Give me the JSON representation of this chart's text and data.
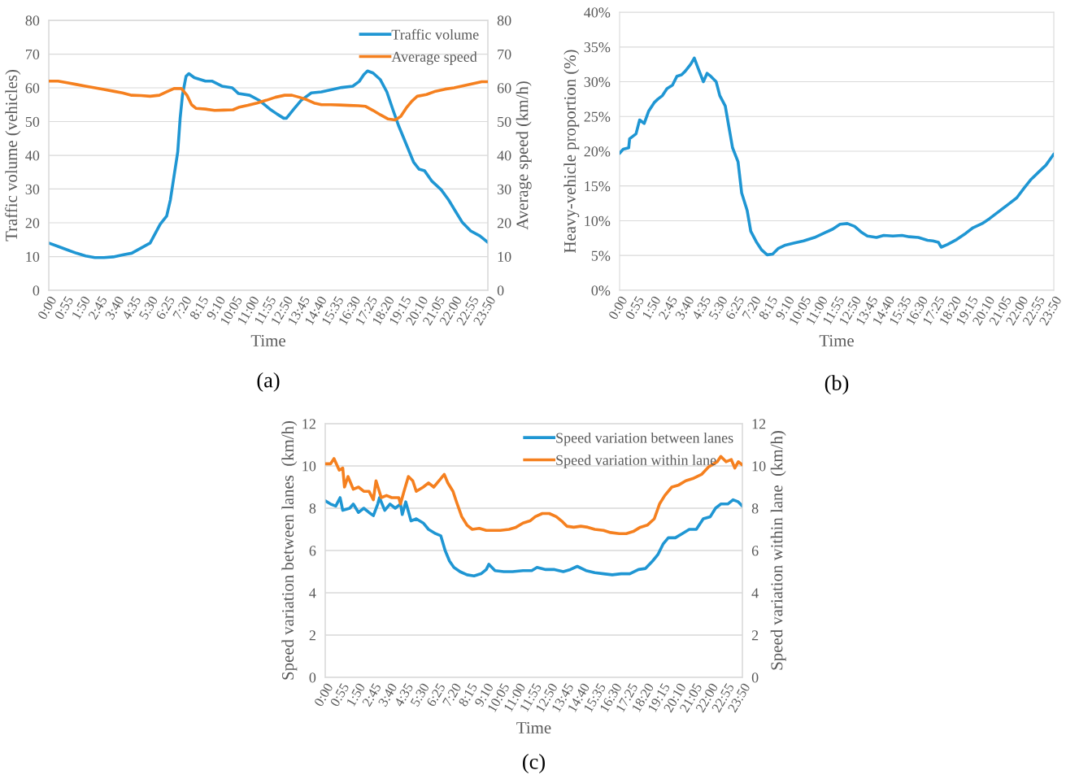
{
  "chart_data": [
    {
      "type": "line",
      "title": "(a)",
      "xlabel": "Time",
      "ylabel": "Traffic volume (vehicles)",
      "y2label": "Average speed (km/h)",
      "legend": "top right",
      "grid": "y",
      "xlim": [
        0,
        23.8333
      ],
      "xticks": [
        {
          "value": 0,
          "label": "0:00"
        },
        {
          "value": 0.9167,
          "label": "0:55"
        },
        {
          "value": 1.8333,
          "label": "1:50"
        },
        {
          "value": 2.75,
          "label": "2:45"
        },
        {
          "value": 3.6667,
          "label": "3:40"
        },
        {
          "value": 4.5833,
          "label": "4:35"
        },
        {
          "value": 5.5,
          "label": "5:30"
        },
        {
          "value": 6.4167,
          "label": "6:25"
        },
        {
          "value": 7.3333,
          "label": "7:20"
        },
        {
          "value": 8.25,
          "label": "8:15"
        },
        {
          "value": 9.1667,
          "label": "9:10"
        },
        {
          "value": 10.0833,
          "label": "10:05"
        },
        {
          "value": 11,
          "label": "11:00"
        },
        {
          "value": 11.9167,
          "label": "11:55"
        },
        {
          "value": 12.8333,
          "label": "12:50"
        },
        {
          "value": 13.75,
          "label": "13:45"
        },
        {
          "value": 14.6667,
          "label": "14:40"
        },
        {
          "value": 15.5833,
          "label": "15:35"
        },
        {
          "value": 16.5,
          "label": "16:30"
        },
        {
          "value": 17.4167,
          "label": "17:25"
        },
        {
          "value": 18.3333,
          "label": "18:20"
        },
        {
          "value": 19.25,
          "label": "19:15"
        },
        {
          "value": 20.1667,
          "label": "20:10"
        },
        {
          "value": 21.0833,
          "label": "21:05"
        },
        {
          "value": 22,
          "label": "22:00"
        },
        {
          "value": 22.9167,
          "label": "22:55"
        },
        {
          "value": 23.8333,
          "label": "23:50"
        }
      ],
      "ylim": [
        0,
        80
      ],
      "yticks": [
        0,
        10,
        20,
        30,
        40,
        50,
        60,
        70,
        80
      ],
      "y2lim": [
        0,
        80
      ],
      "y2ticks": [
        0,
        10,
        20,
        30,
        40,
        50,
        60,
        70,
        80
      ],
      "series": [
        {
          "name": "Traffic volume",
          "color": "#1f96d3",
          "x": [
            0,
            0.5,
            1.0,
            1.5,
            2.0,
            2.5,
            3.0,
            3.5,
            4.0,
            4.5,
            5.0,
            5.5,
            6.05,
            6.4,
            6.6,
            6.8,
            7.0,
            7.13,
            7.26,
            7.45,
            7.6,
            7.9,
            8.5,
            8.85,
            9.4,
            9.96,
            10.3,
            10.9,
            11.45,
            12.0,
            12.4,
            12.75,
            12.9,
            13.3,
            13.7,
            14.25,
            14.8,
            15.4,
            15.9,
            16.5,
            16.85,
            17.1,
            17.3,
            17.6,
            18.0,
            18.35,
            18.7,
            19.0,
            19.5,
            19.8,
            20.1,
            20.4,
            20.8,
            21.3,
            21.7,
            22.1,
            22.45,
            22.9,
            23.4,
            23.8333
          ],
          "values": [
            14.0,
            13,
            12,
            11,
            10.2,
            9.7,
            9.7,
            9.9,
            10.5,
            11,
            12.5,
            14,
            19.6,
            22,
            26.8,
            33.9,
            41,
            51,
            58,
            63.4,
            64.2,
            63,
            62,
            62,
            60.5,
            60,
            58.3,
            57.8,
            56.2,
            53.7,
            52.2,
            51,
            51,
            53.7,
            56.3,
            58.5,
            58.8,
            59.5,
            60.1,
            60.5,
            61.9,
            63.9,
            65,
            64.4,
            62.4,
            58.8,
            53.2,
            48.6,
            42,
            38,
            35.9,
            35.4,
            32.3,
            29.8,
            26.8,
            23.2,
            20.1,
            17.6,
            16.1,
            14.2
          ]
        },
        {
          "name": "Average speed",
          "color": "#f5801f",
          "axis": "y2",
          "x": [
            0,
            0.5,
            1.0,
            1.5,
            2.0,
            2.5,
            3.0,
            3.5,
            4.0,
            4.5,
            5.0,
            5.5,
            6.0,
            6.4,
            6.8,
            7.2,
            7.5,
            7.75,
            8.0,
            8.5,
            9.0,
            9.5,
            10.0,
            10.3,
            10.8,
            11.3,
            11.8,
            12.3,
            12.8,
            13.2,
            13.6,
            14.0,
            14.4,
            14.8,
            15.3,
            15.8,
            16.3,
            16.8,
            17.2,
            17.6,
            18.0,
            18.4,
            18.8,
            19.1,
            19.4,
            19.7,
            20.0,
            20.5,
            21.0,
            21.5,
            22.0,
            22.5,
            23.0,
            23.5,
            23.8333
          ],
          "values": [
            62,
            62,
            61.5,
            61,
            60.5,
            60,
            59.5,
            59,
            58.5,
            57.8,
            57.7,
            57.5,
            57.8,
            58.8,
            59.8,
            59.8,
            57.8,
            55,
            53.9,
            53.7,
            53.3,
            53.4,
            53.5,
            54.2,
            54.8,
            55.5,
            56.3,
            57.2,
            57.8,
            57.8,
            57.2,
            56.5,
            55.5,
            55,
            55,
            54.9,
            54.8,
            54.7,
            54.5,
            53.3,
            52,
            50.8,
            50.5,
            51.5,
            54,
            56,
            57.5,
            58,
            59,
            59.6,
            60,
            60.6,
            61.2,
            61.8,
            61.8
          ]
        }
      ]
    },
    {
      "type": "line",
      "title": "(b)",
      "xlabel": "Time",
      "ylabel": "Heavy-vehicle proportion (%)",
      "grid": "y",
      "xlim": [
        0,
        23.8333
      ],
      "xticks": [
        {
          "value": 0,
          "label": "0:00"
        },
        {
          "value": 0.9167,
          "label": "0:55"
        },
        {
          "value": 1.8333,
          "label": "1:50"
        },
        {
          "value": 2.75,
          "label": "2:45"
        },
        {
          "value": 3.6667,
          "label": "3:40"
        },
        {
          "value": 4.5833,
          "label": "4:35"
        },
        {
          "value": 5.5,
          "label": "5:30"
        },
        {
          "value": 6.4167,
          "label": "6:25"
        },
        {
          "value": 7.3333,
          "label": "7:20"
        },
        {
          "value": 8.25,
          "label": "8:15"
        },
        {
          "value": 9.1667,
          "label": "9:10"
        },
        {
          "value": 10.0833,
          "label": "10:05"
        },
        {
          "value": 11,
          "label": "11:00"
        },
        {
          "value": 11.9167,
          "label": "11:55"
        },
        {
          "value": 12.8333,
          "label": "12:50"
        },
        {
          "value": 13.75,
          "label": "13:45"
        },
        {
          "value": 14.6667,
          "label": "14:40"
        },
        {
          "value": 15.5833,
          "label": "15:35"
        },
        {
          "value": 16.5,
          "label": "16:30"
        },
        {
          "value": 17.4167,
          "label": "17:25"
        },
        {
          "value": 18.3333,
          "label": "18:20"
        },
        {
          "value": 19.25,
          "label": "19:15"
        },
        {
          "value": 20.1667,
          "label": "20:10"
        },
        {
          "value": 21.0833,
          "label": "21:05"
        },
        {
          "value": 22,
          "label": "22:00"
        },
        {
          "value": 22.9167,
          "label": "22:55"
        },
        {
          "value": 23.8333,
          "label": "23:50"
        }
      ],
      "ylim": [
        0,
        40
      ],
      "yticks": [
        {
          "value": 0,
          "label": "0%"
        },
        {
          "value": 5,
          "label": "5%"
        },
        {
          "value": 10,
          "label": "10%"
        },
        {
          "value": 15,
          "label": "15%"
        },
        {
          "value": 20,
          "label": "20%"
        },
        {
          "value": 25,
          "label": "25%"
        },
        {
          "value": 30,
          "label": "30%"
        },
        {
          "value": 35,
          "label": "35%"
        },
        {
          "value": 40,
          "label": "40%"
        }
      ],
      "series": [
        {
          "color": "#1f96d3",
          "x": [
            0,
            0.2,
            0.5,
            0.55,
            0.9,
            1.1,
            1.35,
            1.6,
            1.9,
            2.1,
            2.35,
            2.6,
            2.9,
            3.15,
            3.4,
            3.6,
            3.9,
            4.1,
            4.3,
            4.6,
            4.8,
            5.0,
            5.3,
            5.5,
            5.8,
            6.0,
            6.2,
            6.5,
            6.7,
            7.0,
            7.2,
            7.5,
            7.8,
            8.1,
            8.4,
            8.7,
            9.1,
            9.6,
            10.1,
            10.7,
            11.2,
            11.7,
            12.1,
            12.5,
            12.9,
            13.3,
            13.6,
            14.1,
            14.5,
            15.0,
            15.5,
            15.9,
            16.4,
            16.9,
            17.2,
            17.5,
            17.65,
            18.0,
            18.5,
            19.0,
            19.4,
            19.9,
            20.3,
            20.8,
            21.3,
            21.8,
            22.2,
            22.6,
            23.0,
            23.4,
            23.8333
          ],
          "values": [
            19.7,
            20.3,
            20.5,
            21.8,
            22.5,
            24.5,
            24,
            25.8,
            27,
            27.5,
            28,
            29,
            29.5,
            30.8,
            31,
            31.5,
            32.5,
            33.4,
            32,
            30,
            31.2,
            30.8,
            30,
            28,
            26.5,
            23.5,
            20.5,
            18.5,
            14,
            11.5,
            8.5,
            7,
            5.8,
            5.1,
            5.2,
            6,
            6.5,
            6.8,
            7.1,
            7.6,
            8.2,
            8.8,
            9.5,
            9.6,
            9.2,
            8.3,
            7.8,
            7.6,
            7.9,
            7.8,
            7.9,
            7.7,
            7.6,
            7.2,
            7.1,
            6.9,
            6.2,
            6.6,
            7.3,
            8.2,
            9,
            9.6,
            10.3,
            11.3,
            12.3,
            13.3,
            14.7,
            16,
            17,
            18,
            19.6
          ]
        }
      ]
    },
    {
      "type": "line",
      "title": "(c)",
      "xlabel": "Time",
      "ylabel": "Speed variation between lanes  (km/h)",
      "y2label": "Speed variation within lane  (km/h)",
      "legend": "top right",
      "grid": "y",
      "xlim": [
        0,
        23.8333
      ],
      "xticks": [
        {
          "value": 0,
          "label": "0:00"
        },
        {
          "value": 0.9167,
          "label": "0:55"
        },
        {
          "value": 1.8333,
          "label": "1:50"
        },
        {
          "value": 2.75,
          "label": "2:45"
        },
        {
          "value": 3.6667,
          "label": "3:40"
        },
        {
          "value": 4.5833,
          "label": "4:35"
        },
        {
          "value": 5.5,
          "label": "5:30"
        },
        {
          "value": 6.4167,
          "label": "6:25"
        },
        {
          "value": 7.3333,
          "label": "7:20"
        },
        {
          "value": 8.25,
          "label": "8:15"
        },
        {
          "value": 9.1667,
          "label": "9:10"
        },
        {
          "value": 10.0833,
          "label": "10:05"
        },
        {
          "value": 11,
          "label": "11:00"
        },
        {
          "value": 11.9167,
          "label": "11:55"
        },
        {
          "value": 12.8333,
          "label": "12:50"
        },
        {
          "value": 13.75,
          "label": "13:45"
        },
        {
          "value": 14.6667,
          "label": "14:40"
        },
        {
          "value": 15.5833,
          "label": "15:35"
        },
        {
          "value": 16.5,
          "label": "16:30"
        },
        {
          "value": 17.4167,
          "label": "17:25"
        },
        {
          "value": 18.3333,
          "label": "18:20"
        },
        {
          "value": 19.25,
          "label": "19:15"
        },
        {
          "value": 20.1667,
          "label": "20:10"
        },
        {
          "value": 21.0833,
          "label": "21:05"
        },
        {
          "value": 22,
          "label": "22:00"
        },
        {
          "value": 22.9167,
          "label": "22:55"
        },
        {
          "value": 23.8333,
          "label": "23:50"
        }
      ],
      "ylim": [
        0,
        12
      ],
      "yticks": [
        0,
        2,
        4,
        6,
        8,
        10,
        12
      ],
      "y2lim": [
        0,
        12
      ],
      "y2ticks": [
        0,
        2,
        4,
        6,
        8,
        10,
        12
      ],
      "series": [
        {
          "name": "Speed variation between lanes",
          "color": "#1f96d3",
          "x": [
            0,
            0.3,
            0.6,
            0.85,
            1.0,
            1.4,
            1.6,
            1.9,
            2.2,
            2.5,
            2.75,
            3.0,
            3.1,
            3.4,
            3.7,
            4.0,
            4.3,
            4.4,
            4.6,
            4.9,
            5.2,
            5.6,
            5.9,
            6.3,
            6.6,
            6.85,
            7.1,
            7.35,
            7.7,
            8.1,
            8.5,
            8.9,
            9.2,
            9.35,
            9.7,
            10.2,
            10.7,
            11.3,
            11.8,
            12.1,
            12.6,
            13.1,
            13.6,
            14.0,
            14.4,
            14.9,
            15.4,
            15.9,
            16.4,
            16.9,
            17.4,
            17.9,
            18.3,
            18.7,
            19.0,
            19.3,
            19.6,
            20.0,
            20.4,
            20.8,
            21.2,
            21.6,
            22.0,
            22.3,
            22.6,
            23.0,
            23.3,
            23.6,
            23.8333
          ],
          "values": [
            8.35,
            8.2,
            8.1,
            8.5,
            7.9,
            8.0,
            8.2,
            7.8,
            8.0,
            7.8,
            7.65,
            8.2,
            8.5,
            7.9,
            8.2,
            8.0,
            8.2,
            7.7,
            8.3,
            7.4,
            7.5,
            7.3,
            7.0,
            6.8,
            6.7,
            6.0,
            5.5,
            5.2,
            5.0,
            4.85,
            4.8,
            4.9,
            5.1,
            5.35,
            5.05,
            5.0,
            5.0,
            5.05,
            5.05,
            5.2,
            5.1,
            5.1,
            5.0,
            5.1,
            5.25,
            5.05,
            4.95,
            4.9,
            4.85,
            4.9,
            4.9,
            5.1,
            5.15,
            5.5,
            5.8,
            6.3,
            6.6,
            6.6,
            6.8,
            7.0,
            7.0,
            7.5,
            7.6,
            8.0,
            8.2,
            8.2,
            8.4,
            8.3,
            8.1
          ]
        },
        {
          "name": "Speed variation within lane",
          "color": "#f5801f",
          "axis": "y2",
          "x": [
            0,
            0.3,
            0.5,
            0.8,
            1.0,
            1.1,
            1.3,
            1.6,
            1.9,
            2.2,
            2.5,
            2.75,
            2.9,
            3.2,
            3.5,
            3.8,
            4.2,
            4.3,
            4.5,
            4.75,
            5.0,
            5.2,
            5.6,
            5.9,
            6.2,
            6.6,
            6.8,
            7.0,
            7.3,
            7.5,
            7.8,
            8.1,
            8.4,
            8.8,
            9.2,
            9.6,
            10.0,
            10.5,
            10.9,
            11.3,
            11.7,
            12.0,
            12.4,
            12.8,
            13.2,
            13.5,
            13.8,
            14.2,
            14.6,
            15.0,
            15.4,
            15.9,
            16.3,
            16.8,
            17.2,
            17.6,
            18.0,
            18.4,
            18.8,
            19.1,
            19.4,
            19.8,
            20.2,
            20.6,
            21.0,
            21.5,
            21.9,
            22.2,
            22.4,
            22.6,
            22.9,
            23.2,
            23.4,
            23.6,
            23.8333
          ],
          "values": [
            10.1,
            10.1,
            10.35,
            9.8,
            9.9,
            9.0,
            9.5,
            8.9,
            9.0,
            8.8,
            8.8,
            8.4,
            9.3,
            8.5,
            8.6,
            8.5,
            8.5,
            8.2,
            8.8,
            9.5,
            9.3,
            8.8,
            9.0,
            9.2,
            9.0,
            9.4,
            9.6,
            9.2,
            8.8,
            8.3,
            7.6,
            7.2,
            7.0,
            7.05,
            6.95,
            6.95,
            6.95,
            7.0,
            7.1,
            7.3,
            7.4,
            7.6,
            7.75,
            7.75,
            7.6,
            7.4,
            7.15,
            7.1,
            7.15,
            7.1,
            7.0,
            6.95,
            6.85,
            6.8,
            6.8,
            6.9,
            7.1,
            7.2,
            7.5,
            8.2,
            8.6,
            9.0,
            9.1,
            9.3,
            9.4,
            9.6,
            9.95,
            10.1,
            10.2,
            10.45,
            10.2,
            10.3,
            9.9,
            10.2,
            10.05
          ]
        }
      ]
    }
  ]
}
